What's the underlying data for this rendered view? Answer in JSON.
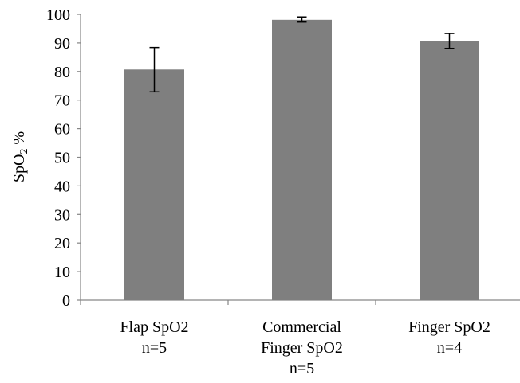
{
  "chart_data": {
    "type": "bar",
    "categories": [
      [
        "Flap SpO2",
        "n=5"
      ],
      [
        "Commercial",
        "Finger SpO2",
        "n=5"
      ],
      [
        "Finger SpO2",
        "n=4"
      ]
    ],
    "values": [
      80.7,
      98.1,
      90.6
    ],
    "error_low": [
      72.9,
      97.3,
      88.1
    ],
    "error_high": [
      88.4,
      99.1,
      93.3
    ],
    "ylabel": "SpO₂ %",
    "ylim": [
      0,
      100
    ],
    "yticks": [
      "0",
      "10",
      "20",
      "30",
      "40",
      "50",
      "60",
      "70",
      "80",
      "90",
      "100"
    ],
    "bar_color": "#7f7f7f",
    "grid": false,
    "legend": "none"
  }
}
